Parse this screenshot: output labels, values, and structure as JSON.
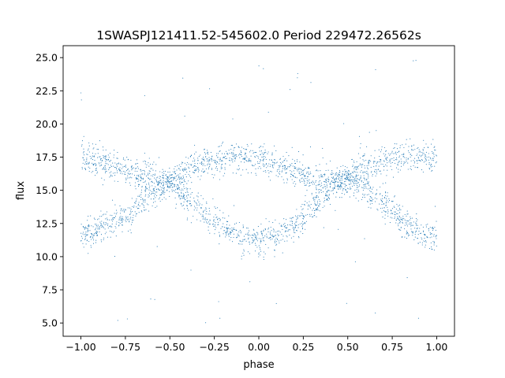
{
  "chart_data": {
    "type": "scatter",
    "title": "1SWASPJ121411.52-545602.0 Period 229472.26562s",
    "xlabel": "phase",
    "ylabel": "flux",
    "xlim": [
      -1.1,
      1.1
    ],
    "ylim": [
      4.0,
      25.9
    ],
    "xticks": [
      -1.0,
      -0.75,
      -0.5,
      -0.25,
      0.0,
      0.25,
      0.5,
      0.75,
      1.0
    ],
    "xtick_labels": [
      "−1.00",
      "−0.75",
      "−0.50",
      "−0.25",
      "0.00",
      "0.25",
      "0.50",
      "0.75",
      "1.00"
    ],
    "yticks": [
      5.0,
      7.5,
      10.0,
      12.5,
      15.0,
      17.5,
      20.0,
      22.5,
      25.0
    ],
    "ytick_labels": [
      "5.0",
      "7.5",
      "10.0",
      "12.5",
      "15.0",
      "17.5",
      "20.0",
      "22.5",
      "25.0"
    ],
    "grid": false,
    "marker_color": "#1f77b4",
    "series": [
      {
        "phase": [
          -1.0,
          -0.9,
          -0.8,
          -0.7,
          -0.6,
          -0.5,
          -0.4,
          -0.3,
          -0.2,
          -0.1,
          0.0,
          0.1,
          0.2,
          0.3,
          0.4,
          0.5,
          0.6,
          0.7,
          0.8,
          0.9,
          1.0
        ],
        "flux": [
          11.6,
          12.0,
          12.7,
          13.6,
          14.8,
          15.8,
          16.6,
          17.1,
          17.4,
          17.5,
          17.4,
          17.0,
          16.4,
          15.8,
          15.7,
          15.7,
          15.2,
          14.0,
          12.8,
          11.9,
          11.5
        ]
      },
      {
        "phase": [
          -1.0,
          -0.9,
          -0.8,
          -0.7,
          -0.6,
          -0.5,
          -0.4,
          -0.3,
          -0.2,
          -0.1,
          0.0,
          0.1,
          0.2,
          0.3,
          0.4,
          0.5,
          0.6,
          0.7,
          0.8,
          0.9,
          1.0
        ],
        "flux": [
          17.5,
          17.2,
          16.8,
          16.3,
          15.9,
          15.6,
          14.4,
          13.2,
          12.2,
          11.5,
          11.3,
          11.7,
          12.4,
          13.6,
          15.0,
          16.0,
          16.8,
          17.2,
          17.4,
          17.5,
          17.4
        ]
      }
    ]
  }
}
